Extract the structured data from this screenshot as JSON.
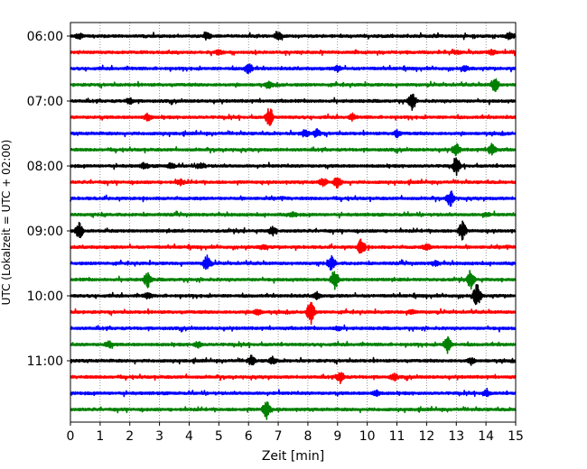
{
  "chart_data": {
    "type": "line",
    "title": "",
    "xlabel": "Zeit  [min]",
    "ylabel": "UTC (Lokalzeit = UTC + 02:00)",
    "xlim": [
      0,
      15
    ],
    "x_ticks": [
      "0",
      "1",
      "2",
      "3",
      "4",
      "5",
      "6",
      "7",
      "8",
      "9",
      "10",
      "11",
      "12",
      "13",
      "14",
      "15"
    ],
    "y_ticks": [
      "06:00",
      "07:00",
      "08:00",
      "09:00",
      "10:00",
      "11:00"
    ],
    "grid": "vertical dotted at each minute",
    "trace_interval_min": 15,
    "trace_start": "06:00",
    "colors_cycle": [
      "#000000",
      "#ff0000",
      "#0000ff",
      "#008000"
    ],
    "traces": [
      {
        "start": "06:00",
        "color": "#000000",
        "events": [
          [
            0.3,
            1.0
          ],
          [
            4.6,
            1.2
          ],
          [
            7.0,
            1.4
          ],
          [
            14.8,
            1.4
          ]
        ]
      },
      {
        "start": "06:15",
        "color": "#ff0000",
        "events": [
          [
            5.0,
            0.8
          ],
          [
            13.0,
            0.8
          ],
          [
            14.2,
            0.8
          ]
        ]
      },
      {
        "start": "06:30",
        "color": "#0000ff",
        "events": [
          [
            6.0,
            2.0
          ],
          [
            9.0,
            1.0
          ],
          [
            13.3,
            0.8
          ]
        ]
      },
      {
        "start": "06:45",
        "color": "#008000",
        "events": [
          [
            6.7,
            1.0
          ],
          [
            14.3,
            2.5
          ]
        ]
      },
      {
        "start": "07:00",
        "color": "#000000",
        "events": [
          [
            2.0,
            1.0
          ],
          [
            11.5,
            3.5
          ]
        ]
      },
      {
        "start": "07:15",
        "color": "#ff0000",
        "events": [
          [
            2.6,
            1.2
          ],
          [
            6.7,
            3.5
          ],
          [
            9.5,
            1.0
          ]
        ]
      },
      {
        "start": "07:30",
        "color": "#0000ff",
        "events": [
          [
            7.9,
            1.4
          ],
          [
            8.3,
            1.4
          ],
          [
            11.0,
            1.2
          ]
        ]
      },
      {
        "start": "07:45",
        "color": "#008000",
        "events": [
          [
            13.0,
            2.2
          ],
          [
            14.2,
            2.2
          ]
        ]
      },
      {
        "start": "08:00",
        "color": "#000000",
        "events": [
          [
            2.5,
            1.0
          ],
          [
            3.4,
            1.0
          ],
          [
            4.4,
            1.2
          ],
          [
            13.0,
            2.8
          ]
        ]
      },
      {
        "start": "08:15",
        "color": "#ff0000",
        "events": [
          [
            3.7,
            1.0
          ],
          [
            8.5,
            1.4
          ],
          [
            9.0,
            2.0
          ]
        ]
      },
      {
        "start": "08:30",
        "color": "#0000ff",
        "events": [
          [
            12.8,
            3.0
          ]
        ]
      },
      {
        "start": "08:45",
        "color": "#008000",
        "events": [
          [
            7.5,
            0.8
          ],
          [
            14.0,
            0.6
          ]
        ]
      },
      {
        "start": "09:00",
        "color": "#000000",
        "events": [
          [
            0.3,
            3.0
          ],
          [
            6.8,
            1.6
          ],
          [
            13.2,
            3.5
          ]
        ]
      },
      {
        "start": "09:15",
        "color": "#ff0000",
        "events": [
          [
            6.5,
            0.8
          ],
          [
            9.8,
            3.0
          ],
          [
            12.0,
            1.0
          ]
        ]
      },
      {
        "start": "09:30",
        "color": "#0000ff",
        "events": [
          [
            4.6,
            3.0
          ],
          [
            8.8,
            2.6
          ],
          [
            12.3,
            1.0
          ]
        ]
      },
      {
        "start": "09:45",
        "color": "#008000",
        "events": [
          [
            2.6,
            2.6
          ],
          [
            8.9,
            3.4
          ],
          [
            13.5,
            3.5
          ]
        ]
      },
      {
        "start": "10:00",
        "color": "#000000",
        "events": [
          [
            2.6,
            1.0
          ],
          [
            8.3,
            1.2
          ],
          [
            13.7,
            4.5
          ]
        ]
      },
      {
        "start": "10:15",
        "color": "#ff0000",
        "events": [
          [
            8.1,
            4.5
          ],
          [
            6.3,
            1.0
          ],
          [
            11.5,
            0.8
          ]
        ]
      },
      {
        "start": "10:30",
        "color": "#0000ff",
        "events": [
          [
            9.0,
            0.8
          ]
        ]
      },
      {
        "start": "10:45",
        "color": "#008000",
        "events": [
          [
            1.3,
            1.2
          ],
          [
            4.3,
            1.0
          ],
          [
            12.7,
            3.0
          ]
        ]
      },
      {
        "start": "11:00",
        "color": "#000000",
        "events": [
          [
            6.1,
            1.6
          ],
          [
            6.8,
            1.2
          ],
          [
            13.5,
            1.0
          ]
        ]
      },
      {
        "start": "11:15",
        "color": "#ff0000",
        "events": [
          [
            9.1,
            2.2
          ],
          [
            10.9,
            1.2
          ]
        ]
      },
      {
        "start": "11:30",
        "color": "#0000ff",
        "events": [
          [
            10.3,
            1.0
          ],
          [
            14.0,
            1.2
          ]
        ]
      },
      {
        "start": "11:45",
        "color": "#008000",
        "events": [
          [
            6.6,
            3.5
          ]
        ]
      }
    ]
  }
}
